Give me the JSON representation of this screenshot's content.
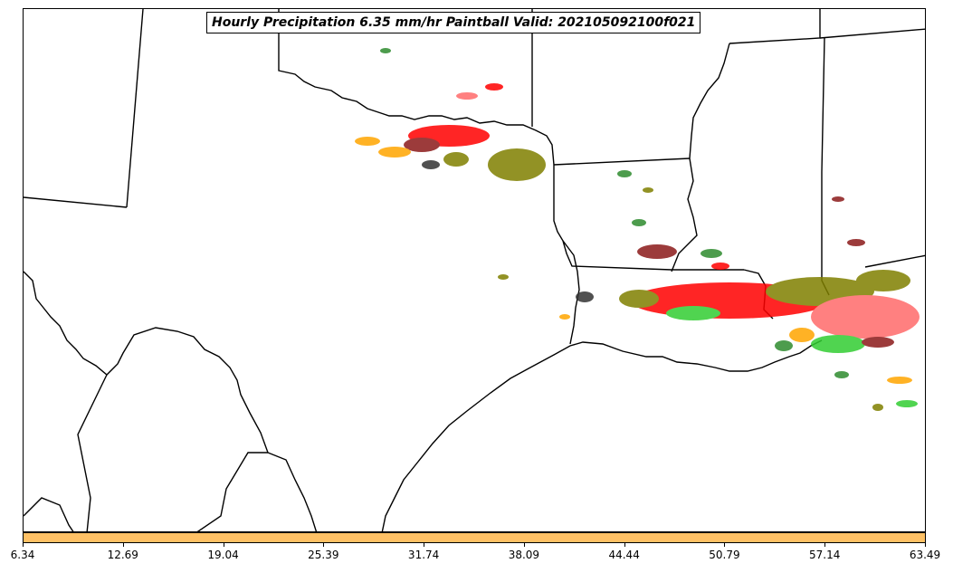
{
  "title": "Hourly Precipitation 6.35 mm/hr Paintball Valid: 202105092100f021",
  "colorbar": {
    "color": "#ffc165",
    "ticks": [
      "6.34",
      "12.69",
      "19.04",
      "25.39",
      "31.74",
      "38.09",
      "44.44",
      "50.79",
      "57.14",
      "63.49"
    ]
  },
  "paintball_colors": [
    "#ff0000",
    "#ff6b6b",
    "#8b1a1a",
    "#2e8b2e",
    "#32cd32",
    "#808000",
    "#ffa500",
    "#333333"
  ]
}
